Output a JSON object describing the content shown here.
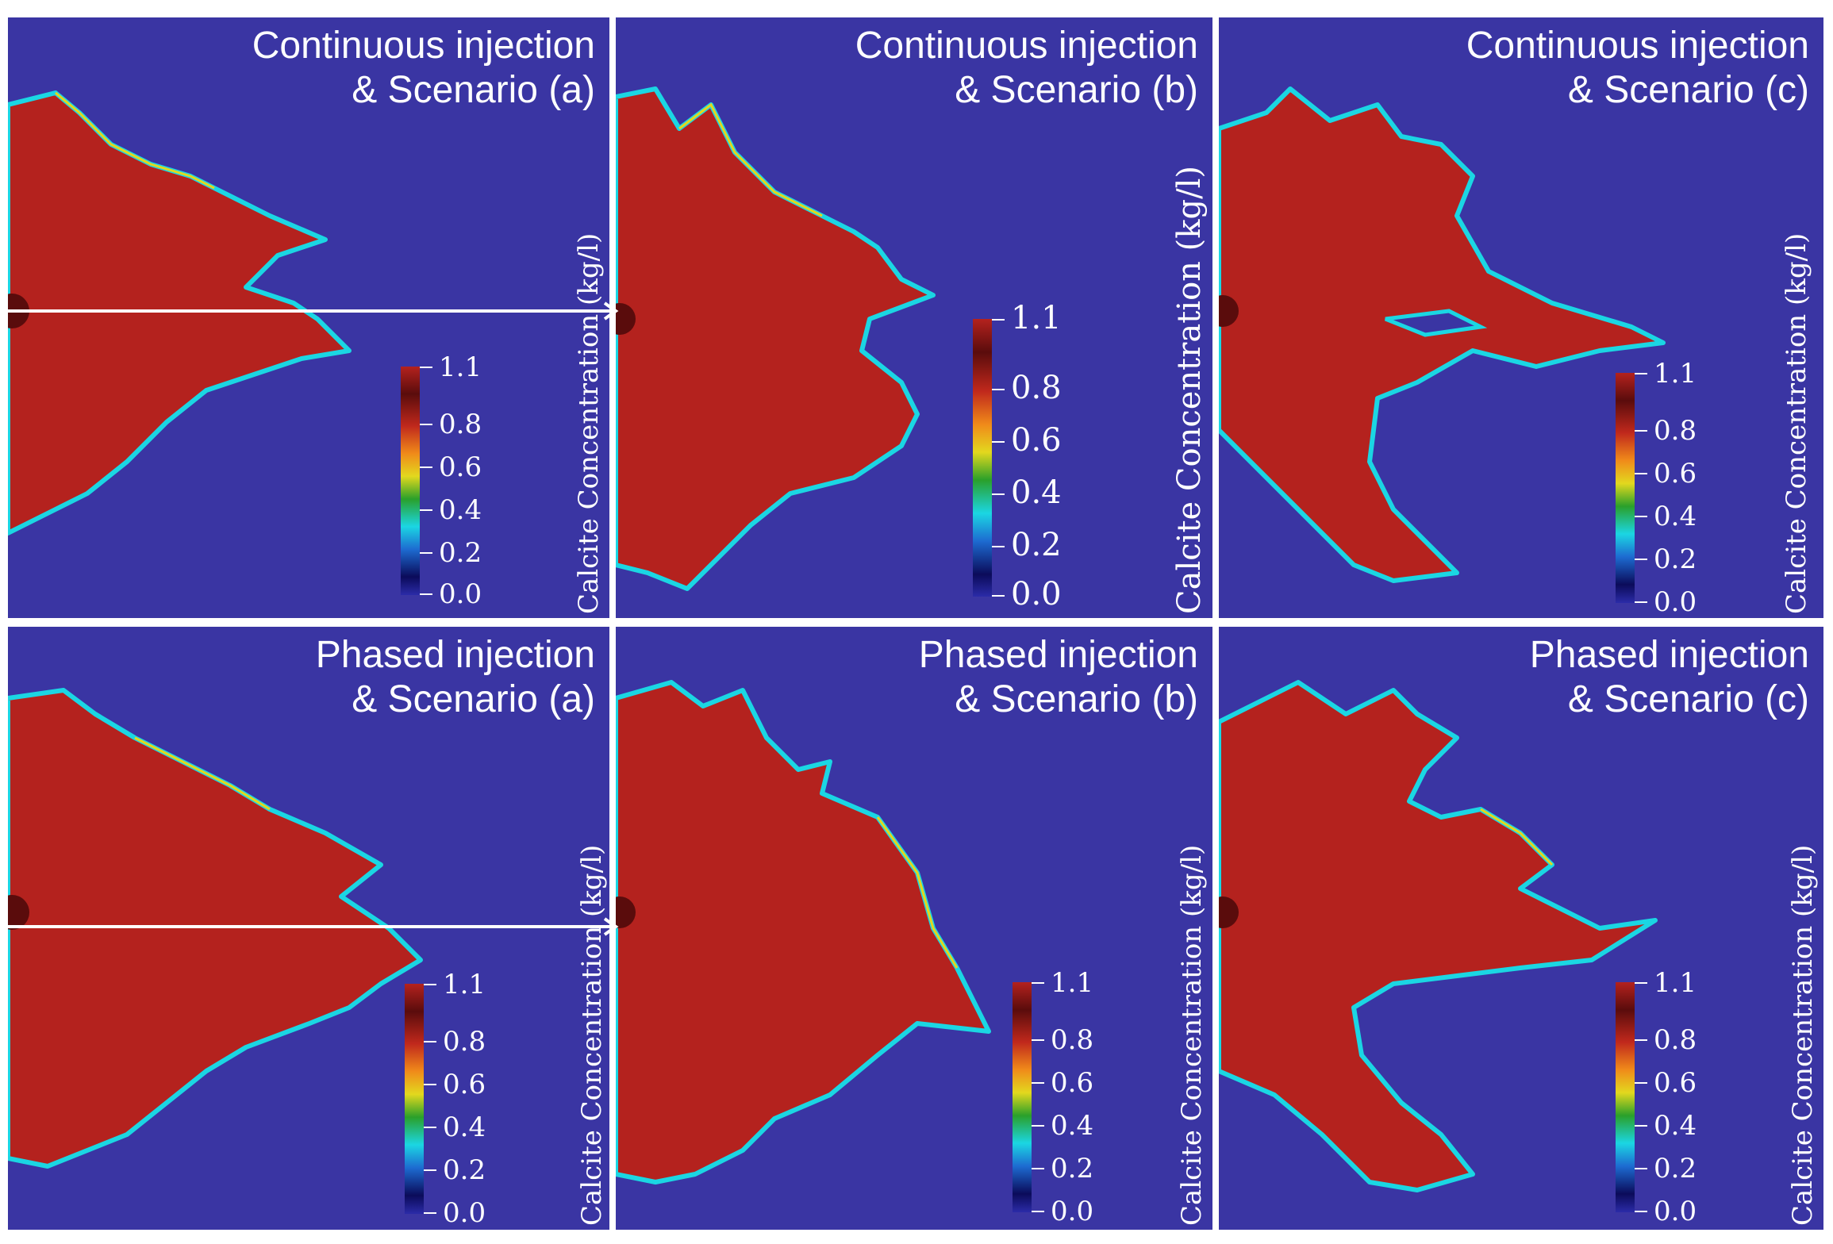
{
  "panels": [
    {
      "title_line1": "Continuous injection",
      "title_line2": "& Scenario (a)",
      "colorbar_title": "Calcite Concentration (kg/l)",
      "colorbar_ticks": [
        "1.1",
        "0.8",
        "0.6",
        "0.4",
        "0.2",
        "0.0"
      ]
    },
    {
      "title_line1": "Continuous injection",
      "title_line2": "& Scenario (b)",
      "colorbar_title": "Calcite Concentration (kg/l)",
      "colorbar_ticks": [
        "1.1",
        "0.8",
        "0.6",
        "0.4",
        "0.2",
        "0.0"
      ]
    },
    {
      "title_line1": "Continuous injection",
      "title_line2": "& Scenario (c)",
      "colorbar_title": "Calcite Concentration (kg/l)",
      "colorbar_ticks": [
        "1.1",
        "0.8",
        "0.6",
        "0.4",
        "0.2",
        "0.0"
      ]
    },
    {
      "title_line1": "Phased injection",
      "title_line2": "& Scenario (a)",
      "colorbar_title": "Calcite Concentration (kg/l)",
      "colorbar_ticks": [
        "1.1",
        "0.8",
        "0.6",
        "0.4",
        "0.2",
        "0.0"
      ]
    },
    {
      "title_line1": "Phased injection",
      "title_line2": "& Scenario (b)",
      "colorbar_title": "Calcite Concentration (kg/l)",
      "colorbar_ticks": [
        "1.1",
        "0.8",
        "0.6",
        "0.4",
        "0.2",
        "0.0"
      ]
    },
    {
      "title_line1": "Phased injection",
      "title_line2": "& Scenario (c)",
      "colorbar_title": "Calcite Concentration (kg/l)",
      "colorbar_ticks": [
        "1.1",
        "0.8",
        "0.6",
        "0.4",
        "0.2",
        "0.0"
      ]
    }
  ],
  "colors": {
    "background": "#3a35a3",
    "high": "#b4221e",
    "edge_cyan": "#1bd6e3",
    "edge_yellow": "#e3d81e"
  }
}
